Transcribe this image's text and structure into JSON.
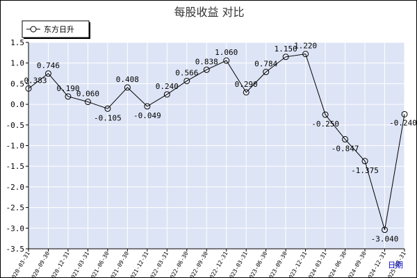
{
  "chart_data": {
    "type": "line",
    "title": "每股收益  对比",
    "xlabel": "日期",
    "ylabel": "",
    "ylim": [
      -3.5,
      1.5
    ],
    "yticks": [
      "1.5",
      "1.0",
      "0.5",
      "0.0",
      "-0.5",
      "-1.0",
      "-1.5",
      "-2.0",
      "-2.5",
      "-3.0",
      "-3.5"
    ],
    "grid": true,
    "legend_position": "top-left",
    "x": [
      "2020-03-31",
      "2020-09-30",
      "2020-12-31",
      "2021-03-31",
      "2021-06-30",
      "2021-09-30",
      "2021-12-31",
      "2022-03-31",
      "2022-06-30",
      "2022-09-30",
      "2022-12-31",
      "2023-03-31",
      "2023-06-30",
      "2023-09-30",
      "2023-12-31",
      "2024-03-31",
      "2024-06-30",
      "2024-09-30",
      "2024-12-31",
      "2025-03-31"
    ],
    "series": [
      {
        "name": "东方日升",
        "values": [
          0.383,
          0.746,
          0.19,
          0.06,
          -0.105,
          0.408,
          -0.049,
          0.24,
          0.566,
          0.838,
          1.06,
          0.29,
          0.784,
          1.15,
          1.22,
          -0.25,
          -0.847,
          -1.375,
          -3.04,
          -0.24
        ],
        "labels": [
          "0.383",
          "0.746",
          "0.190",
          "0.060",
          "-0.105",
          "0.408",
          "-0.049",
          "0.240",
          "0.566",
          "0.838",
          "1.060",
          "0.290",
          "0.784",
          "1.150",
          "1.220",
          "-0.250",
          "-0.847",
          "-1.375",
          "-3.040",
          "-0.240"
        ]
      }
    ],
    "colors": {
      "plot_bg": "#dde4f5",
      "grid": "#ffffff",
      "line": "#000000",
      "axis_label_accent": "#0000cc"
    }
  }
}
